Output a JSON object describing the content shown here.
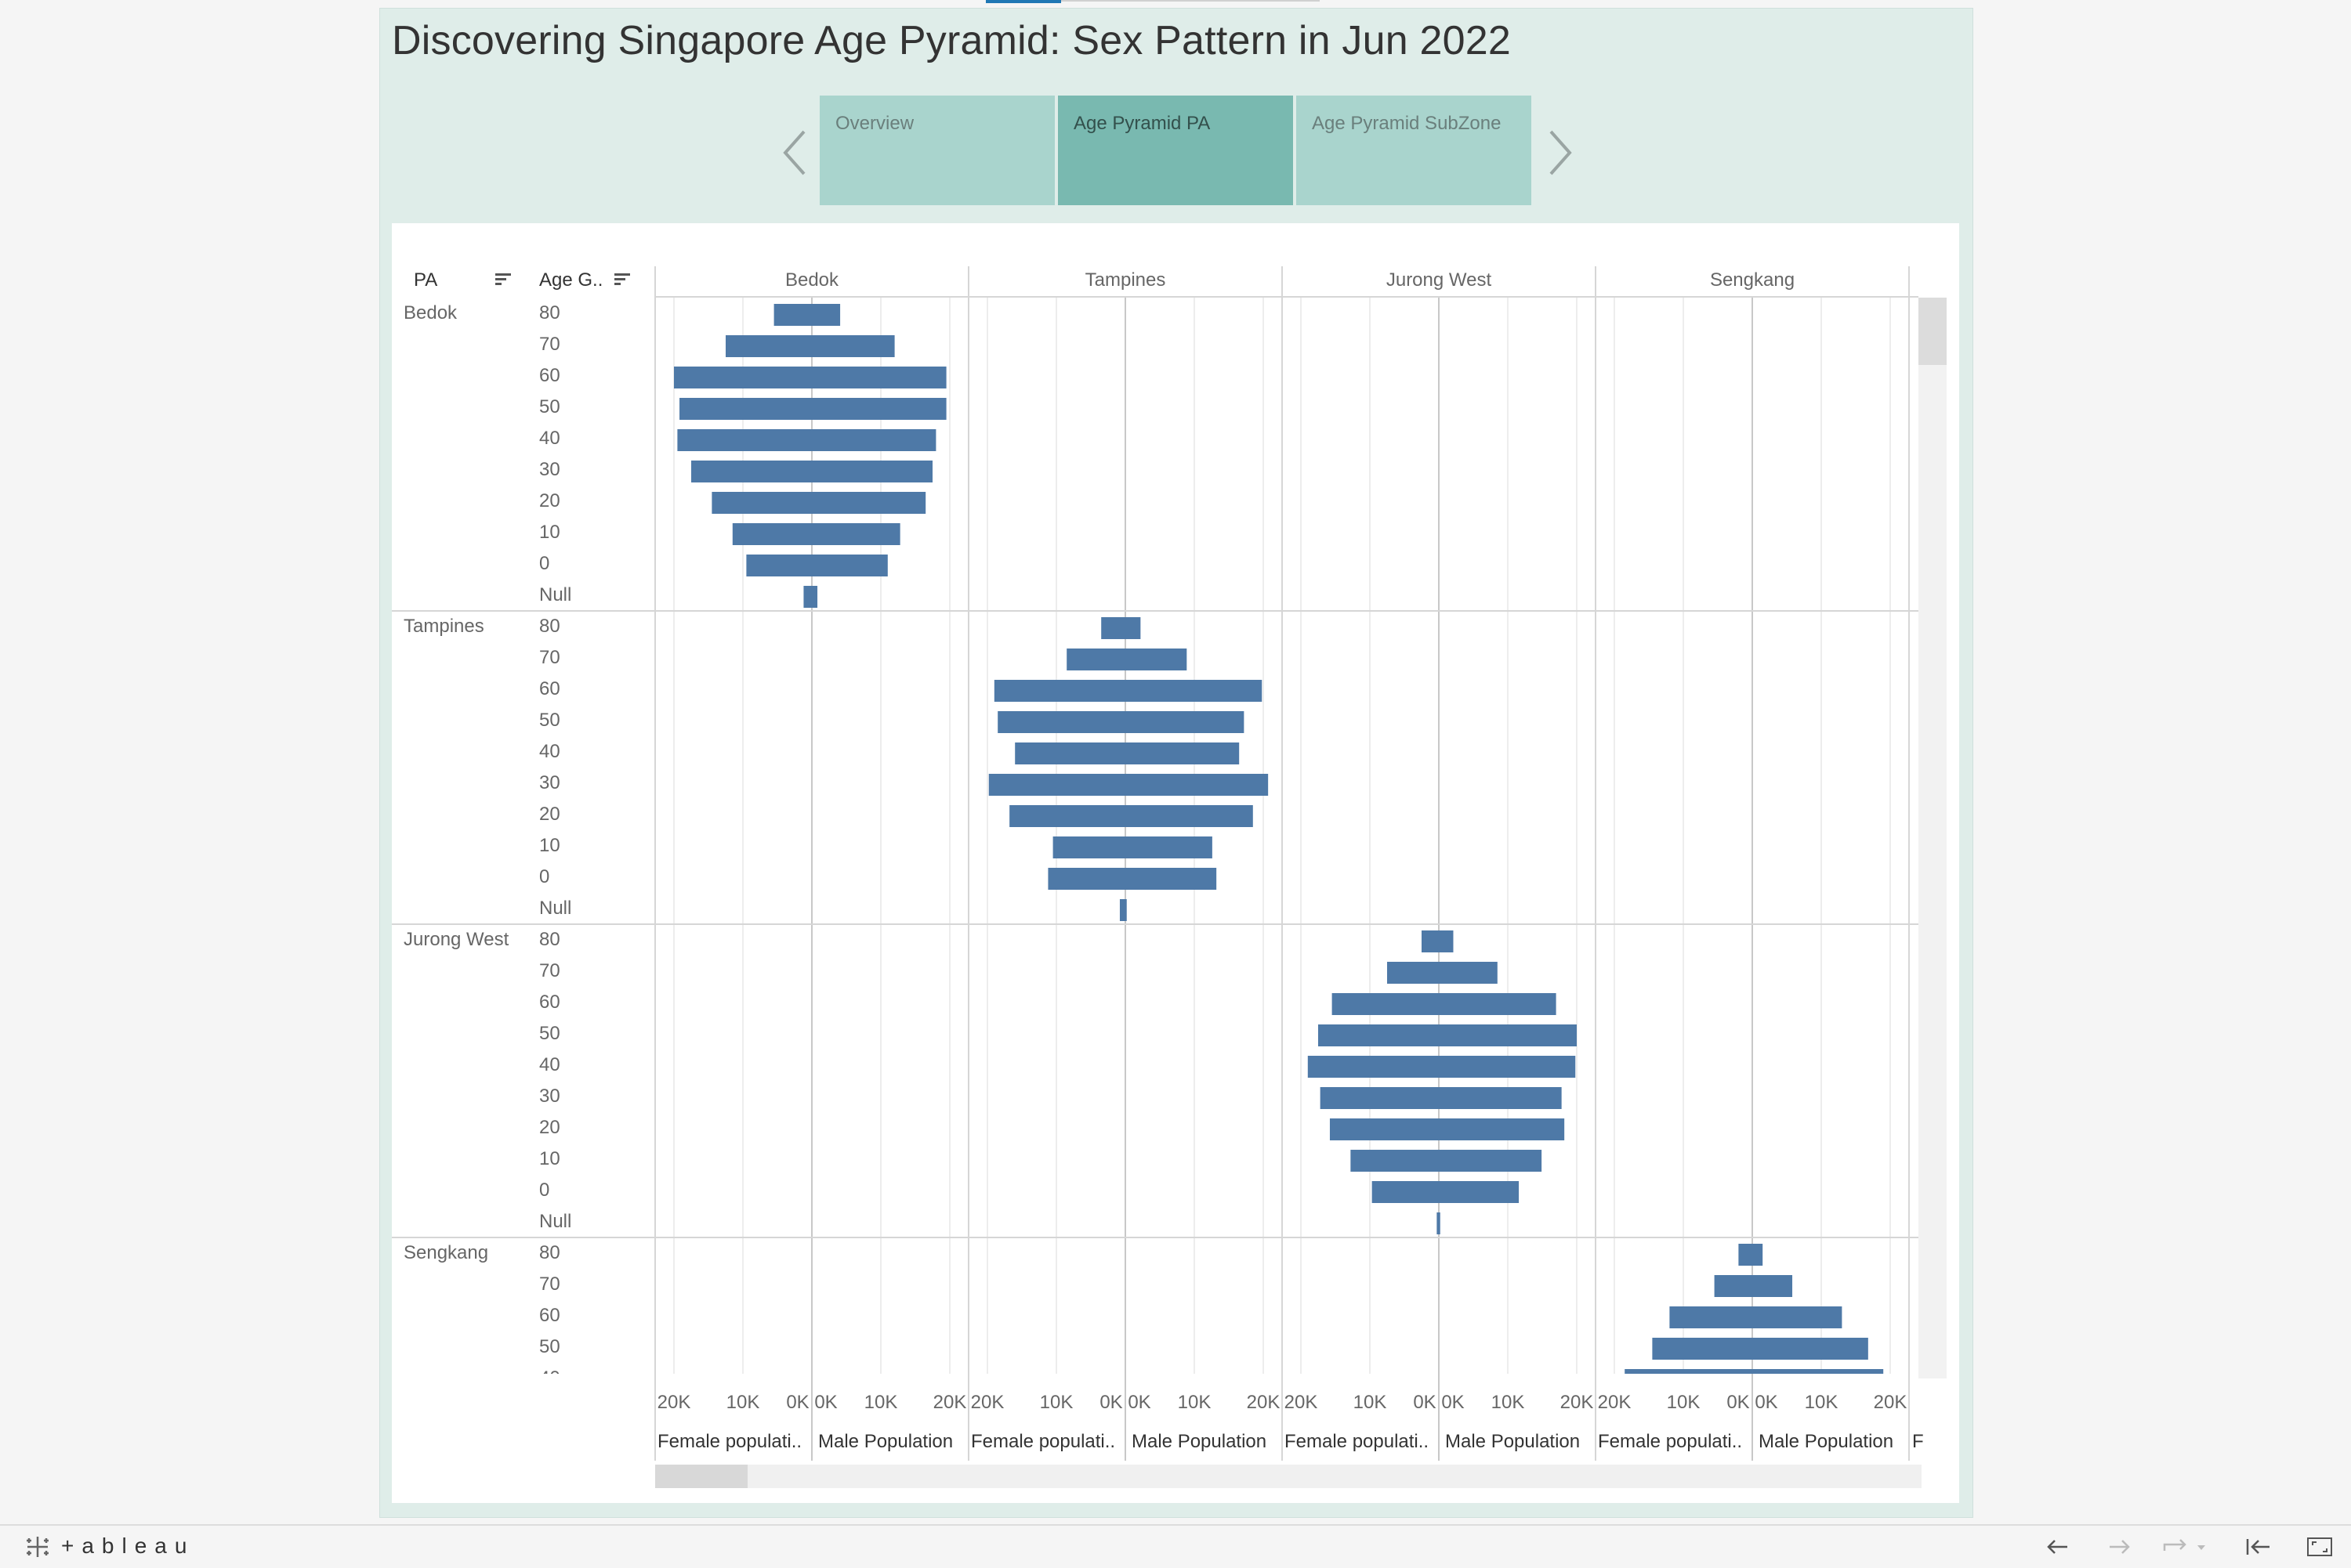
{
  "title": "Discovering Singapore Age Pyramid: Sex Pattern in Jun 2022",
  "tabs": [
    {
      "label": "Overview",
      "active": false
    },
    {
      "label": "Age Pyramid PA",
      "active": true
    },
    {
      "label": "Age Pyramid SubZone",
      "active": false
    }
  ],
  "icons": {
    "prev": "chevron-left-icon",
    "next": "chevron-right-icon",
    "sort": "sort-icon",
    "undo": "undo-icon",
    "redo": "redo-icon",
    "revert": "revert-icon",
    "first": "first-page-icon",
    "fullscreen": "fullscreen-icon"
  },
  "colors": {
    "bar": "#4e79a7",
    "story_bg": "#dfede9",
    "tab": "#a9d4cd",
    "tab_active": "#79b9b0"
  },
  "brand": "+ableau",
  "chart_data": {
    "type": "bar",
    "subtype": "population-pyramid-small-multiples",
    "row_header_pa": "PA",
    "row_header_age": "Age G..",
    "columns": [
      "Bedok",
      "Tampines",
      "Jurong West",
      "Sengkang"
    ],
    "rows": [
      {
        "pa": "Bedok",
        "age_groups": [
          "80",
          "70",
          "60",
          "50",
          "40",
          "30",
          "20",
          "10",
          "0",
          "Null"
        ]
      },
      {
        "pa": "Tampines",
        "age_groups": [
          "80",
          "70",
          "60",
          "50",
          "40",
          "30",
          "20",
          "10",
          "0",
          "Null"
        ]
      },
      {
        "pa": "Jurong West",
        "age_groups": [
          "80",
          "70",
          "60",
          "50",
          "40",
          "30",
          "20",
          "10",
          "0",
          "Null"
        ]
      },
      {
        "pa": "Sengkang",
        "age_groups": [
          "80",
          "70",
          "60",
          "50"
        ]
      }
    ],
    "axis_labels": [
      "Female populati..",
      "Male Population"
    ],
    "axis_truncated_label": "F",
    "female_ticks": [
      "20K",
      "10K",
      "0K"
    ],
    "male_ticks": [
      "0K",
      "10K",
      "20K"
    ],
    "xlim": [
      0,
      22500
    ],
    "series": [
      {
        "name": "Female populati..",
        "data": {
          "Bedok": [
            5500,
            12500,
            20000,
            19200,
            19500,
            17500,
            14500,
            11500,
            9500,
            1200
          ],
          "Tampines": [
            3500,
            8500,
            19000,
            18500,
            16000,
            19800,
            16800,
            10500,
            11200,
            800
          ],
          "Jurong West": [
            2500,
            7500,
            15500,
            17500,
            19000,
            17200,
            15800,
            12800,
            9700,
            300
          ],
          "Sengkang": [
            2000,
            5500,
            12000,
            14500
          ]
        }
      },
      {
        "name": "Male Population",
        "data": {
          "Bedok": [
            4100,
            12000,
            19500,
            19500,
            18000,
            17500,
            16500,
            12800,
            11000,
            800
          ],
          "Tampines": [
            2200,
            8900,
            19800,
            17200,
            16500,
            20700,
            18500,
            12600,
            13200,
            200
          ],
          "Jurong West": [
            2100,
            8500,
            17000,
            20000,
            19800,
            17800,
            18200,
            14900,
            11600,
            200
          ],
          "Sengkang": [
            1500,
            5800,
            13000,
            16800
          ]
        }
      }
    ]
  }
}
